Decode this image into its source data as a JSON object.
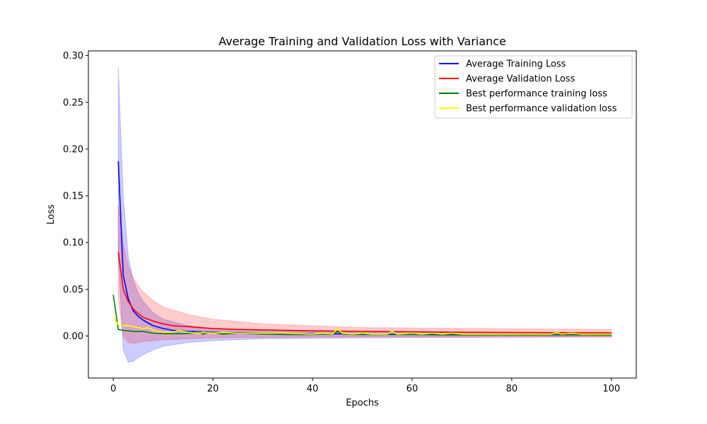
{
  "chart_data": {
    "type": "line",
    "title": "Average Training and Validation Loss with Variance",
    "xlabel": "Epochs",
    "ylabel": "Loss",
    "xlim": [
      -5,
      105
    ],
    "ylim": [
      -0.045,
      0.305
    ],
    "xticks": [
      0,
      20,
      40,
      60,
      80,
      100
    ],
    "xtick_labels": [
      "0",
      "20",
      "40",
      "60",
      "80",
      "100"
    ],
    "yticks": [
      0.0,
      0.05,
      0.1,
      0.15,
      0.2,
      0.25,
      0.3
    ],
    "ytick_labels": [
      "0.00",
      "0.05",
      "0.10",
      "0.15",
      "0.20",
      "0.25",
      "0.30"
    ],
    "grid": false,
    "legend_position": "top-right",
    "bands": [
      {
        "color": "#0000ff",
        "opacity": 0.2,
        "x": [
          1,
          2,
          3,
          4,
          5,
          6,
          8,
          10,
          15,
          20,
          30,
          50,
          100
        ],
        "upper": [
          0.287,
          0.15,
          0.085,
          0.06,
          0.046,
          0.037,
          0.025,
          0.018,
          0.011,
          0.008,
          0.006,
          0.004,
          0.003
        ],
        "lower": [
          0.087,
          -0.015,
          -0.028,
          -0.027,
          -0.023,
          -0.02,
          -0.015,
          -0.011,
          -0.007,
          -0.005,
          -0.003,
          -0.002,
          -0.001
        ]
      },
      {
        "color": "#ff0000",
        "opacity": 0.2,
        "x": [
          1,
          2,
          3,
          4,
          5,
          6,
          8,
          10,
          15,
          20,
          30,
          50,
          100
        ],
        "upper": [
          0.14,
          0.1,
          0.075,
          0.062,
          0.054,
          0.047,
          0.038,
          0.031,
          0.023,
          0.018,
          0.013,
          0.009,
          0.007
        ],
        "lower": [
          0.04,
          0.0,
          -0.007,
          -0.008,
          -0.007,
          -0.006,
          -0.005,
          -0.004,
          -0.003,
          -0.002,
          -0.0015,
          -0.001,
          -0.001
        ]
      }
    ],
    "series": [
      {
        "name": "Average Training Loss",
        "color": "#0000ff",
        "x": [
          1,
          2,
          3,
          4,
          5,
          6,
          7,
          8,
          10,
          12,
          15,
          20,
          25,
          30,
          40,
          50,
          60,
          70,
          80,
          90,
          100
        ],
        "y": [
          0.187,
          0.065,
          0.04,
          0.027,
          0.021,
          0.017,
          0.014,
          0.011,
          0.008,
          0.006,
          0.005,
          0.004,
          0.0035,
          0.003,
          0.0025,
          0.002,
          0.0018,
          0.0016,
          0.0015,
          0.0014,
          0.0013
        ]
      },
      {
        "name": "Average Validation Loss",
        "color": "#ff0000",
        "x": [
          1,
          2,
          3,
          4,
          5,
          6,
          7,
          8,
          10,
          12,
          15,
          20,
          25,
          30,
          40,
          50,
          60,
          70,
          80,
          90,
          100
        ],
        "y": [
          0.09,
          0.05,
          0.037,
          0.029,
          0.024,
          0.02,
          0.018,
          0.016,
          0.013,
          0.011,
          0.01,
          0.008,
          0.007,
          0.0065,
          0.0055,
          0.005,
          0.0045,
          0.004,
          0.0037,
          0.0035,
          0.0033
        ]
      },
      {
        "name": "Best performance training loss",
        "color": "#008000",
        "x": [
          0,
          1,
          2,
          3,
          4,
          5,
          6,
          8,
          10,
          12,
          14,
          16,
          17,
          18,
          19,
          20,
          22,
          25,
          30,
          35,
          40,
          42,
          44,
          45,
          46,
          48,
          50,
          55,
          60,
          65,
          70,
          75,
          80,
          85,
          90,
          95,
          100
        ],
        "y": [
          0.044,
          0.007,
          0.006,
          0.0055,
          0.005,
          0.005,
          0.0048,
          0.003,
          0.0025,
          0.0025,
          0.0025,
          0.003,
          0.005,
          0.002,
          0.0035,
          0.004,
          0.002,
          0.003,
          0.002,
          0.0015,
          0.0015,
          0.002,
          0.0015,
          0.005,
          0.002,
          0.0015,
          0.0015,
          0.0015,
          0.0015,
          0.0012,
          0.0012,
          0.0012,
          0.0012,
          0.0011,
          0.0011,
          0.0011,
          0.001
        ]
      },
      {
        "name": "Best performance validation loss",
        "color": "#ffff00",
        "x": [
          0,
          1,
          2,
          3,
          4,
          5,
          6,
          7,
          8,
          10,
          12,
          13,
          15,
          17,
          18,
          20,
          22,
          25,
          30,
          35,
          40,
          42,
          44,
          45,
          46,
          48,
          50,
          52,
          55,
          56,
          57,
          60,
          62,
          64,
          66,
          68,
          70,
          72,
          75,
          78,
          80,
          82,
          85,
          88,
          89,
          90,
          92,
          94,
          96,
          98,
          100
        ],
        "y": [
          0.02,
          0.012,
          0.011,
          0.011,
          0.01,
          0.009,
          0.008,
          0.009,
          0.006,
          0.004,
          0.004,
          0.006,
          0.004,
          0.003,
          0.004,
          0.003,
          0.004,
          0.003,
          0.003,
          0.003,
          0.002,
          0.003,
          0.002,
          0.008,
          0.003,
          0.002,
          0.003,
          0.002,
          0.002,
          0.005,
          0.002,
          0.003,
          0.002,
          0.003,
          0.002,
          0.003,
          0.002,
          0.002,
          0.002,
          0.002,
          0.002,
          0.002,
          0.002,
          0.002,
          0.004,
          0.002,
          0.003,
          0.002,
          0.002,
          0.002,
          0.002
        ]
      }
    ]
  }
}
